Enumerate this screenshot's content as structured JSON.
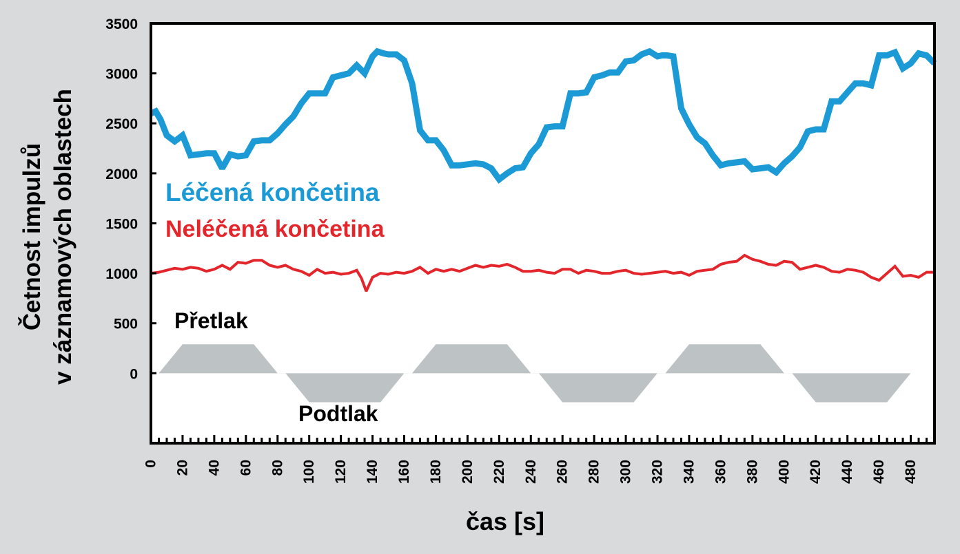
{
  "chart_data": {
    "type": "line",
    "title": "",
    "xlabel": "čas [s]",
    "ylabel_lines": [
      "Četnost impulzů",
      "v záznamových oblastech"
    ],
    "xlim": [
      0,
      495
    ],
    "ylim": [
      -700,
      3500
    ],
    "x_ticks": [
      0,
      20,
      40,
      60,
      80,
      100,
      120,
      140,
      160,
      180,
      200,
      220,
      240,
      260,
      280,
      300,
      320,
      340,
      360,
      380,
      400,
      420,
      440,
      460,
      480
    ],
    "y_ticks": [
      0,
      500,
      1000,
      1500,
      2000,
      2500,
      3000,
      3500
    ],
    "grid": false,
    "colors": {
      "treated": "#1b9ad6",
      "untreated": "#e3262b",
      "pressure": "#bdc2c4",
      "axis": "#000000",
      "plot_bg": "#ffffff",
      "page_bg": "#d8dadb"
    },
    "series": [
      {
        "name": "Léčená končetina",
        "key": "treated",
        "x": [
          0,
          3,
          6,
          10,
          15,
          20,
          25,
          30,
          35,
          40,
          45,
          50,
          55,
          60,
          65,
          70,
          75,
          80,
          85,
          90,
          95,
          100,
          105,
          110,
          115,
          120,
          125,
          130,
          135,
          140,
          143,
          147,
          150,
          155,
          160,
          165,
          170,
          175,
          180,
          185,
          190,
          195,
          200,
          205,
          210,
          215,
          220,
          225,
          230,
          235,
          240,
          245,
          250,
          255,
          260,
          265,
          270,
          275,
          280,
          285,
          290,
          295,
          300,
          305,
          310,
          315,
          320,
          323,
          326,
          330,
          335,
          340,
          345,
          350,
          355,
          360,
          365,
          370,
          375,
          380,
          385,
          390,
          395,
          400,
          405,
          410,
          415,
          420,
          425,
          430,
          435,
          440,
          445,
          450,
          455,
          460,
          465,
          470,
          475,
          480,
          485,
          490,
          495
        ],
        "y": [
          2600,
          2620,
          2540,
          2380,
          2320,
          2380,
          2180,
          2190,
          2200,
          2200,
          2050,
          2190,
          2170,
          2180,
          2320,
          2330,
          2330,
          2400,
          2490,
          2570,
          2700,
          2800,
          2800,
          2800,
          2960,
          2980,
          3000,
          3080,
          3000,
          3170,
          3220,
          3200,
          3190,
          3190,
          3130,
          2900,
          2430,
          2330,
          2330,
          2230,
          2080,
          2080,
          2090,
          2100,
          2090,
          2050,
          1940,
          2000,
          2050,
          2060,
          2200,
          2290,
          2460,
          2470,
          2470,
          2800,
          2800,
          2810,
          2960,
          2980,
          3010,
          3010,
          3120,
          3130,
          3190,
          3220,
          3170,
          3180,
          3180,
          3170,
          2650,
          2490,
          2360,
          2300,
          2180,
          2080,
          2100,
          2110,
          2120,
          2040,
          2050,
          2060,
          2010,
          2100,
          2170,
          2260,
          2420,
          2440,
          2440,
          2720,
          2720,
          2810,
          2900,
          2900,
          2880,
          3180,
          3180,
          3210,
          3050,
          3100,
          3200,
          3180,
          3100
        ]
      },
      {
        "name": "Neléčená končetina",
        "key": "untreated",
        "x": [
          0,
          5,
          10,
          15,
          20,
          25,
          30,
          35,
          40,
          45,
          50,
          55,
          60,
          65,
          70,
          75,
          80,
          85,
          90,
          95,
          100,
          105,
          110,
          115,
          120,
          125,
          130,
          133,
          136,
          140,
          145,
          150,
          155,
          160,
          165,
          170,
          175,
          180,
          185,
          190,
          195,
          200,
          205,
          210,
          215,
          220,
          225,
          230,
          235,
          240,
          245,
          250,
          255,
          260,
          265,
          270,
          275,
          280,
          285,
          290,
          295,
          300,
          305,
          310,
          315,
          320,
          325,
          330,
          335,
          340,
          345,
          350,
          355,
          360,
          365,
          370,
          375,
          380,
          385,
          390,
          395,
          400,
          405,
          410,
          415,
          420,
          425,
          430,
          435,
          440,
          445,
          450,
          455,
          460,
          465,
          470,
          475,
          480,
          485,
          490,
          495
        ],
        "y": [
          1000,
          1010,
          1030,
          1050,
          1040,
          1060,
          1050,
          1020,
          1040,
          1080,
          1040,
          1110,
          1100,
          1130,
          1130,
          1080,
          1060,
          1080,
          1040,
          1020,
          980,
          1040,
          1000,
          1010,
          990,
          1000,
          1030,
          950,
          820,
          960,
          1000,
          990,
          1010,
          1000,
          1020,
          1060,
          1000,
          1040,
          1020,
          1040,
          1020,
          1050,
          1080,
          1060,
          1080,
          1070,
          1090,
          1060,
          1020,
          1020,
          1030,
          1010,
          1000,
          1040,
          1040,
          1000,
          1030,
          1020,
          1000,
          1000,
          1020,
          1030,
          1000,
          990,
          1000,
          1010,
          1020,
          1000,
          1010,
          980,
          1020,
          1030,
          1040,
          1090,
          1110,
          1120,
          1180,
          1140,
          1120,
          1090,
          1080,
          1120,
          1110,
          1040,
          1060,
          1080,
          1060,
          1020,
          1010,
          1040,
          1030,
          1010,
          960,
          930,
          1000,
          1070,
          970,
          980,
          960,
          1010,
          1010
        ]
      }
    ],
    "pressure_curve": {
      "x": [
        5,
        20,
        65,
        80,
        85,
        100,
        145,
        160,
        165,
        180,
        225,
        240,
        245,
        260,
        305,
        320,
        325,
        340,
        385,
        400,
        405,
        420,
        465,
        480
      ],
      "y": [
        0,
        290,
        290,
        0,
        0,
        -290,
        -290,
        0,
        0,
        290,
        290,
        0,
        0,
        -290,
        -290,
        0,
        0,
        290,
        290,
        0,
        0,
        -290,
        -290,
        0
      ]
    },
    "annotations": {
      "treated_label": "Léčená končetina",
      "untreated_label": "Neléčená končetina",
      "overpressure": "Přetlak",
      "underpressure": "Podtlak"
    }
  }
}
